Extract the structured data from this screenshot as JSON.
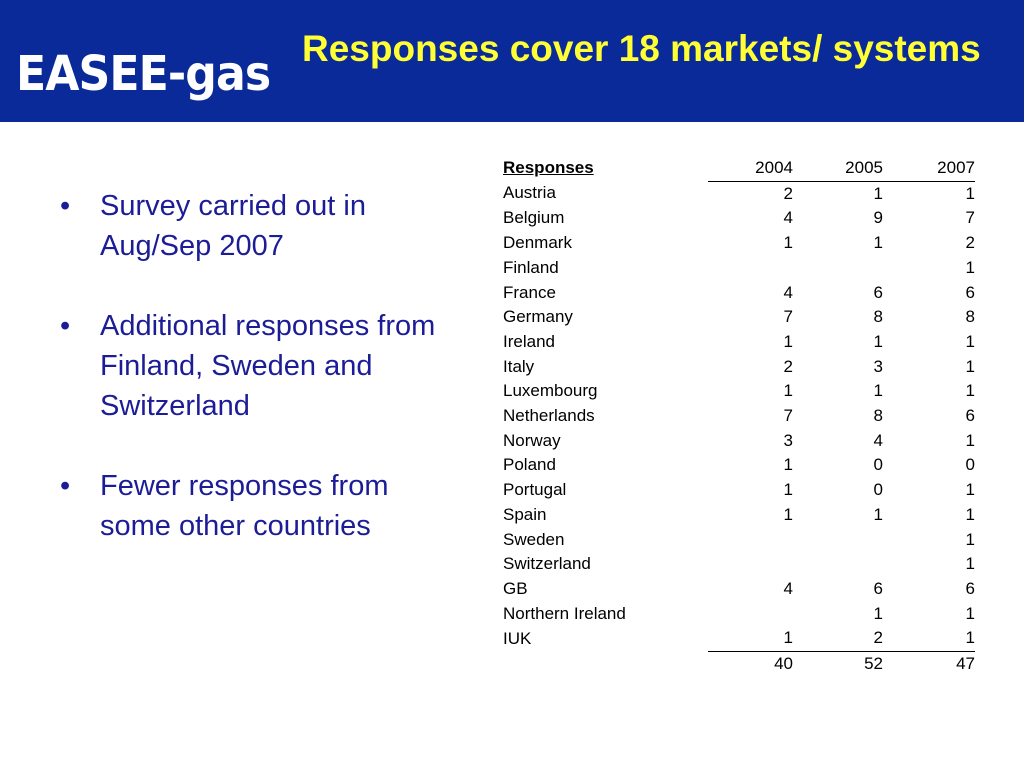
{
  "header": {
    "logo_text": "EASEE-gas",
    "title": "Responses cover 18 markets/ systems"
  },
  "bullets": [
    "Survey carried out in Aug/Sep 2007",
    "Additional responses from Finland, Sweden and Switzerland",
    "Fewer responses from some other countries"
  ],
  "table": {
    "headers": [
      "Responses",
      "2004",
      "2005",
      "2007"
    ],
    "rows": [
      [
        "Austria",
        "2",
        "1",
        "1"
      ],
      [
        "Belgium",
        "4",
        "9",
        "7"
      ],
      [
        "Denmark",
        "1",
        "1",
        "2"
      ],
      [
        "Finland",
        "",
        "",
        "1"
      ],
      [
        "France",
        "4",
        "6",
        "6"
      ],
      [
        "Germany",
        "7",
        "8",
        "8"
      ],
      [
        "Ireland",
        "1",
        "1",
        "1"
      ],
      [
        "Italy",
        "2",
        "3",
        "1"
      ],
      [
        "Luxembourg",
        "1",
        "1",
        "1"
      ],
      [
        "Netherlands",
        "7",
        "8",
        "6"
      ],
      [
        "Norway",
        "3",
        "4",
        "1"
      ],
      [
        "Poland",
        "1",
        "0",
        "0"
      ],
      [
        "Portugal",
        "1",
        "0",
        "1"
      ],
      [
        "Spain",
        "1",
        "1",
        "1"
      ],
      [
        "Sweden",
        "",
        "",
        "1"
      ],
      [
        "Switzerland",
        "",
        "",
        "1"
      ],
      [
        "GB",
        "4",
        "6",
        "6"
      ],
      [
        "Northern Ireland",
        "",
        "1",
        "1"
      ],
      [
        "IUK",
        "1",
        "2",
        "1"
      ]
    ],
    "totals": [
      "",
      "40",
      "52",
      "47"
    ]
  },
  "colors": {
    "header_bg": "#0a2a9a",
    "title": "#ffff33",
    "logo": "#ffffff",
    "bullet_text": "#1c1c96"
  }
}
